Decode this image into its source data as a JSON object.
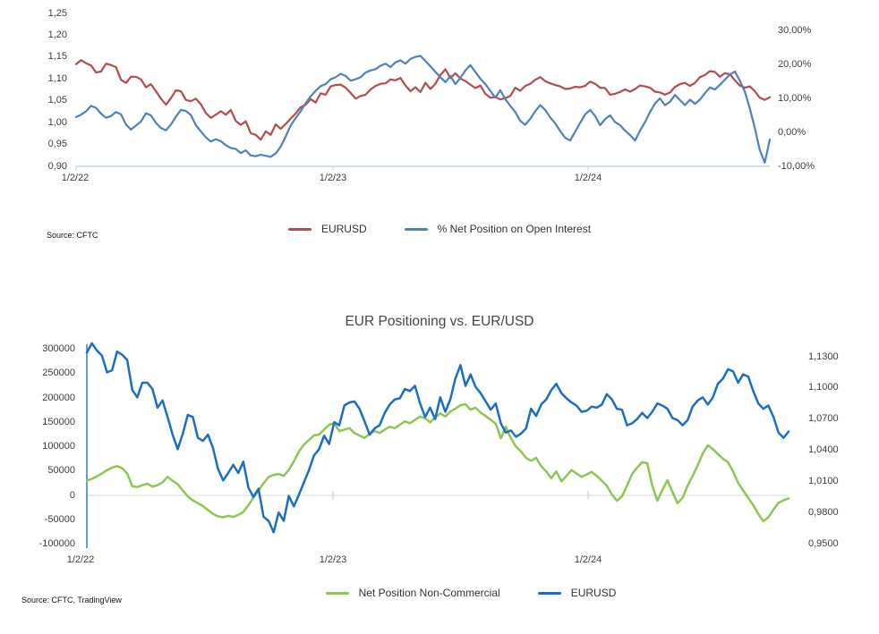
{
  "chart_data": [
    {
      "type": "line",
      "title": "",
      "source": "Source: CFTC",
      "x_tick_labels": [
        "1/2/22",
        "1/2/23",
        "1/2/24"
      ],
      "grid": "off",
      "legend_position": "bottom",
      "left_axis": {
        "min": 0.9,
        "max": 1.25,
        "tick_labels": [
          "1,25",
          "1,20",
          "1,15",
          "1,10",
          "1,05",
          "1,00",
          "0,95",
          "0,90"
        ],
        "tick_values": [
          1.25,
          1.2,
          1.15,
          1.1,
          1.05,
          1.0,
          0.95,
          0.9
        ]
      },
      "right_axis": {
        "min": -10,
        "max": 30,
        "tick_labels": [
          "30,00%",
          "20,00%",
          "10,00%",
          "0,00%",
          "-10,00%"
        ],
        "tick_values": [
          30,
          20,
          10,
          0,
          -10
        ]
      },
      "series": [
        {
          "name": "EURUSD",
          "color": "#b64a4c",
          "axis": "left",
          "values": [
            1.134,
            1.143,
            1.136,
            1.131,
            1.115,
            1.117,
            1.135,
            1.132,
            1.127,
            1.098,
            1.091,
            1.105,
            1.105,
            1.099,
            1.081,
            1.088,
            1.072,
            1.055,
            1.041,
            1.056,
            1.074,
            1.072,
            1.052,
            1.049,
            1.055,
            1.042,
            1.022,
            1.011,
            1.018,
            1.026,
            1.018,
            1.029,
            1.004,
            0.995,
            1.003,
            0.976,
            0.972,
            0.961,
            0.98,
            0.972,
            0.996,
            0.986,
            0.997,
            1.009,
            1.021,
            1.035,
            1.041,
            1.054,
            1.046,
            1.067,
            1.064,
            1.083,
            1.086,
            1.087,
            1.08,
            1.068,
            1.055,
            1.061,
            1.064,
            1.076,
            1.084,
            1.089,
            1.09,
            1.099,
            1.097,
            1.102,
            1.085,
            1.072,
            1.081,
            1.07,
            1.091,
            1.077,
            1.089,
            1.109,
            1.122,
            1.102,
            1.113,
            1.101,
            1.095,
            1.087,
            1.079,
            1.085,
            1.066,
            1.057,
            1.059,
            1.053,
            1.056,
            1.061,
            1.08,
            1.073,
            1.084,
            1.089,
            1.098,
            1.104,
            1.095,
            1.09,
            1.086,
            1.083,
            1.077,
            1.078,
            1.082,
            1.081,
            1.084,
            1.094,
            1.089,
            1.08,
            1.079,
            1.064,
            1.066,
            1.07,
            1.076,
            1.071,
            1.077,
            1.085,
            1.083,
            1.08,
            1.071,
            1.069,
            1.064,
            1.069,
            1.082,
            1.088,
            1.091,
            1.084,
            1.091,
            1.104,
            1.109,
            1.118,
            1.116,
            1.105,
            1.113,
            1.111,
            1.097,
            1.085,
            1.08,
            1.083,
            1.072,
            1.057,
            1.052,
            1.058
          ]
        },
        {
          "name": "% Net Position on Open Interest",
          "color": "#4e81bd",
          "axis": "right",
          "values": [
            4.5,
            5.2,
            6.2,
            7.8,
            7.2,
            5.5,
            4.3,
            4.8,
            6.0,
            5.3,
            2.3,
            0.8,
            2.0,
            3.2,
            5.6,
            5.0,
            2.8,
            1.3,
            0.6,
            2.3,
            4.6,
            6.6,
            6.3,
            5.1,
            2.1,
            0.3,
            -1.5,
            -2.7,
            -2.0,
            -2.6,
            -3.8,
            -4.6,
            -4.9,
            -6.1,
            -5.3,
            -6.8,
            -7.0,
            -6.6,
            -6.9,
            -7.2,
            -6.2,
            -4.2,
            -1.2,
            2.0,
            4.2,
            6.2,
            8.6,
            10.6,
            12.2,
            13.6,
            14.2,
            15.6,
            16.2,
            17.2,
            16.6,
            15.2,
            15.6,
            16.2,
            17.6,
            18.2,
            18.6,
            19.6,
            20.2,
            19.2,
            20.6,
            21.2,
            20.2,
            21.6,
            22.2,
            22.5,
            21.0,
            19.4,
            17.8,
            16.2,
            14.8,
            16.6,
            14.2,
            16.0,
            18.2,
            19.8,
            17.8,
            15.8,
            14.2,
            12.2,
            10.2,
            12.4,
            9.8,
            7.8,
            6.0,
            3.4,
            2.2,
            4.0,
            6.2,
            8.0,
            6.6,
            4.4,
            2.6,
            0.4,
            -1.6,
            -2.4,
            0.2,
            2.8,
            5.3,
            6.6,
            4.8,
            2.1,
            3.9,
            5.0,
            3.0,
            2.1,
            0.5,
            -0.8,
            -2.4,
            0.5,
            3.0,
            6.0,
            8.5,
            10.0,
            8.0,
            9.0,
            11.0,
            9.5,
            8.0,
            9.6,
            8.4,
            9.6,
            11.5,
            13.2,
            12.6,
            14.0,
            15.5,
            17.0,
            17.9,
            15.2,
            12.0,
            7.0,
            1.2,
            -5.2,
            -8.9,
            -2.1
          ]
        }
      ]
    },
    {
      "type": "line",
      "title": "EUR Positioning vs. EUR/USD",
      "source": "Source: CFTC, TradingView",
      "x_tick_labels": [
        "1/2/22",
        "1/2/23",
        "1/2/24"
      ],
      "grid": "zero-line-only",
      "legend_position": "bottom",
      "left_axis": {
        "min": -100000,
        "max": 300000,
        "tick_labels": [
          "300000",
          "250000",
          "200000",
          "150000",
          "100000",
          "50000",
          "0",
          "-50000",
          "-100000"
        ],
        "tick_values": [
          300000,
          250000,
          200000,
          150000,
          100000,
          50000,
          0,
          -50000,
          -100000
        ]
      },
      "right_axis": {
        "min": 0.95,
        "max": 1.13,
        "tick_labels": [
          "1,1300",
          "1,1000",
          "1,0700",
          "1,0400",
          "1,0100",
          "0,9800",
          "0,9500"
        ],
        "tick_values": [
          1.13,
          1.1,
          1.07,
          1.04,
          1.01,
          0.98,
          0.95
        ]
      },
      "series": [
        {
          "name": "Net Position Non-Commercial",
          "color": "#8ec652",
          "axis": "left",
          "values": [
            30000,
            34000,
            39000,
            45000,
            52000,
            57000,
            60000,
            56000,
            45000,
            19000,
            17000,
            21000,
            24000,
            18000,
            21000,
            27000,
            38000,
            30000,
            23000,
            10000,
            -2000,
            -10000,
            -16000,
            -22000,
            -30000,
            -38000,
            -43000,
            -45000,
            -42000,
            -44000,
            -40000,
            -34000,
            -20000,
            -5000,
            10000,
            25000,
            38000,
            42000,
            44000,
            40000,
            52000,
            70000,
            90000,
            104000,
            114000,
            123000,
            125000,
            135000,
            145000,
            148000,
            132000,
            135000,
            138000,
            128000,
            123000,
            118000,
            126000,
            132000,
            128000,
            135000,
            141000,
            138000,
            145000,
            152000,
            148000,
            155000,
            162000,
            158000,
            150000,
            160000,
            168000,
            162000,
            172000,
            178000,
            185000,
            187000,
            176000,
            180000,
            170000,
            163000,
            155000,
            147000,
            117000,
            141000,
            117000,
            100000,
            90000,
            77000,
            71000,
            77000,
            60000,
            49000,
            35000,
            49000,
            29000,
            40000,
            52000,
            45000,
            38000,
            43000,
            48000,
            40000,
            30000,
            20000,
            2000,
            -11000,
            -2000,
            20000,
            44000,
            57000,
            68000,
            66000,
            20000,
            -11000,
            11000,
            31000,
            7000,
            -16000,
            -5000,
            20000,
            40000,
            62000,
            86000,
            103000,
            95000,
            85000,
            75000,
            68000,
            49000,
            26000,
            10000,
            -5000,
            -20000,
            -38000,
            -53000,
            -45000,
            -29000,
            -15000,
            -10000,
            -6000
          ]
        },
        {
          "name": "EURUSD",
          "color": "#1b6ec2",
          "axis": "right",
          "values": [
            1.134,
            1.143,
            1.136,
            1.131,
            1.115,
            1.117,
            1.135,
            1.132,
            1.127,
            1.098,
            1.091,
            1.105,
            1.105,
            1.099,
            1.081,
            1.088,
            1.072,
            1.055,
            1.041,
            1.056,
            1.074,
            1.072,
            1.052,
            1.049,
            1.055,
            1.042,
            1.022,
            1.011,
            1.018,
            1.026,
            1.018,
            1.029,
            1.004,
            0.995,
            1.003,
            0.976,
            0.972,
            0.961,
            0.98,
            0.972,
            0.996,
            0.986,
            0.997,
            1.009,
            1.021,
            1.035,
            1.041,
            1.054,
            1.046,
            1.067,
            1.064,
            1.083,
            1.086,
            1.087,
            1.08,
            1.068,
            1.055,
            1.061,
            1.064,
            1.076,
            1.084,
            1.089,
            1.09,
            1.099,
            1.097,
            1.102,
            1.085,
            1.072,
            1.081,
            1.07,
            1.091,
            1.077,
            1.089,
            1.109,
            1.122,
            1.102,
            1.113,
            1.101,
            1.095,
            1.087,
            1.079,
            1.085,
            1.066,
            1.057,
            1.059,
            1.053,
            1.056,
            1.061,
            1.08,
            1.073,
            1.084,
            1.089,
            1.098,
            1.104,
            1.095,
            1.09,
            1.086,
            1.083,
            1.077,
            1.078,
            1.082,
            1.081,
            1.084,
            1.094,
            1.089,
            1.08,
            1.079,
            1.064,
            1.066,
            1.07,
            1.076,
            1.071,
            1.077,
            1.085,
            1.083,
            1.08,
            1.071,
            1.069,
            1.064,
            1.069,
            1.082,
            1.088,
            1.091,
            1.084,
            1.091,
            1.104,
            1.109,
            1.118,
            1.116,
            1.105,
            1.113,
            1.111,
            1.097,
            1.085,
            1.08,
            1.083,
            1.072,
            1.057,
            1.052,
            1.058
          ]
        }
      ]
    }
  ]
}
